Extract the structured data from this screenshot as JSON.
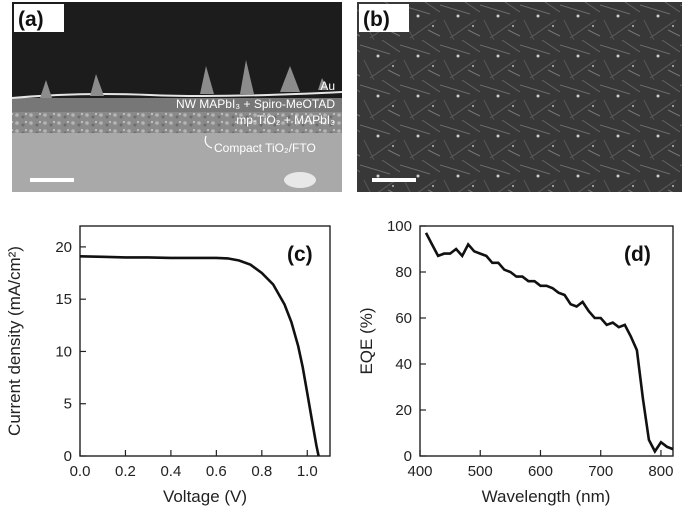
{
  "panels": {
    "a": {
      "tag": "(a)",
      "layers": [
        {
          "name": "au",
          "label": "Au"
        },
        {
          "name": "nw",
          "label": "NW MAPbI₃ + Spiro-MeOTAD"
        },
        {
          "name": "mp",
          "label": "mp-TiO₂ + MAPbI₃"
        },
        {
          "name": "compact",
          "label": "Compact TiO₂/FTO"
        }
      ]
    },
    "b": {
      "tag": "(b)"
    },
    "c": {
      "tag": "(c)"
    },
    "d": {
      "tag": "(d)"
    }
  },
  "colors": {
    "curve": "#111111",
    "axis": "#222222",
    "sem_bg": "#3a3a3a"
  },
  "chart_data": [
    {
      "id": "c",
      "type": "line",
      "xlabel": "Voltage (V)",
      "ylabel": "Current density (mA/cm²)",
      "xlim": [
        0.0,
        1.1
      ],
      "ylim": [
        0,
        22
      ],
      "xticks": [
        "0.0",
        "0.2",
        "0.4",
        "0.6",
        "0.8",
        "1.0"
      ],
      "xtick_values": [
        0.0,
        0.2,
        0.4,
        0.6,
        0.8,
        1.0
      ],
      "yticks": [
        "0",
        "5",
        "10",
        "15",
        "20"
      ],
      "ytick_values": [
        0,
        5,
        10,
        15,
        20
      ],
      "grid": false,
      "x": [
        0.0,
        0.1,
        0.2,
        0.3,
        0.4,
        0.5,
        0.6,
        0.65,
        0.7,
        0.75,
        0.8,
        0.85,
        0.9,
        0.93,
        0.96,
        0.98,
        1.0,
        1.02,
        1.04,
        1.05
      ],
      "y": [
        19.1,
        19.05,
        19.0,
        19.0,
        18.95,
        18.95,
        18.95,
        18.9,
        18.7,
        18.3,
        17.5,
        16.4,
        14.5,
        12.8,
        10.5,
        8.5,
        6.0,
        3.5,
        1.0,
        0.0
      ]
    },
    {
      "id": "d",
      "type": "line",
      "xlabel": "Wavelength (nm)",
      "ylabel": "EQE (%)",
      "xlim": [
        400,
        820
      ],
      "ylim": [
        0,
        100
      ],
      "xticks": [
        "400",
        "500",
        "600",
        "700",
        "800"
      ],
      "xtick_values": [
        400,
        500,
        600,
        700,
        800
      ],
      "yticks": [
        "0",
        "20",
        "40",
        "60",
        "80",
        "100"
      ],
      "ytick_values": [
        0,
        20,
        40,
        60,
        80,
        100
      ],
      "grid": false,
      "x": [
        410,
        420,
        430,
        440,
        450,
        460,
        470,
        480,
        490,
        500,
        510,
        520,
        530,
        540,
        550,
        560,
        570,
        580,
        590,
        600,
        610,
        620,
        630,
        640,
        650,
        660,
        670,
        680,
        690,
        700,
        710,
        720,
        730,
        740,
        750,
        760,
        770,
        780,
        790,
        800,
        810,
        820
      ],
      "y": [
        97,
        92,
        87,
        88,
        88,
        90,
        87,
        92,
        89,
        88,
        87,
        84,
        84,
        81,
        80,
        78,
        78,
        76,
        76,
        74,
        74,
        73,
        71,
        70,
        66,
        65,
        67,
        63,
        60,
        60,
        57,
        58,
        56,
        57,
        52,
        46,
        25,
        7,
        2,
        6,
        4,
        3
      ]
    }
  ]
}
